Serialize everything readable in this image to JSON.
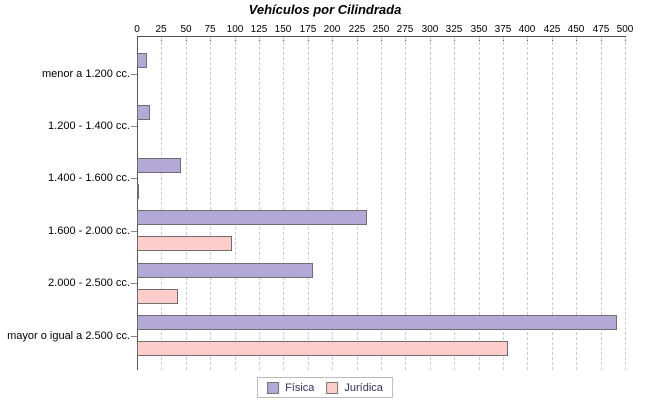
{
  "title": "Vehículos por Cilindrada",
  "chart_data": {
    "type": "bar",
    "orientation": "horizontal",
    "title": "Vehículos por Cilindrada",
    "categories": [
      "menor a 1.200 cc.",
      "1.200 - 1.400 cc.",
      "1.400 - 1.600 cc.",
      "1.600 - 2.000 cc.",
      "2.000 - 2.500 cc.",
      "mayor o igual a 2.500 cc."
    ],
    "series": [
      {
        "name": "Física",
        "color": "#b3a9d6",
        "values": [
          10,
          13,
          45,
          236,
          180,
          492
        ]
      },
      {
        "name": "Jurídica",
        "color": "#ffcccc",
        "values": [
          0,
          0,
          2,
          97,
          42,
          380
        ]
      }
    ],
    "xlim": [
      0,
      500
    ],
    "x_ticks": [
      0,
      25,
      50,
      75,
      100,
      125,
      150,
      175,
      200,
      225,
      250,
      275,
      300,
      325,
      350,
      375,
      400,
      425,
      450,
      475,
      500
    ],
    "grid": "dashed-vertical",
    "legend_position": "bottom-center",
    "xlabel": "",
    "ylabel": ""
  },
  "colors": {
    "fisica_fill": "#b3a9d6",
    "juridica_fill": "#ffcccc",
    "bar_border": "#6e6e6e",
    "gridline": "#cccccc",
    "axis": "#555555",
    "text": "#000000",
    "legend_text": "#333366",
    "legend_border": "#bbbbbb",
    "background": "#ffffff"
  }
}
